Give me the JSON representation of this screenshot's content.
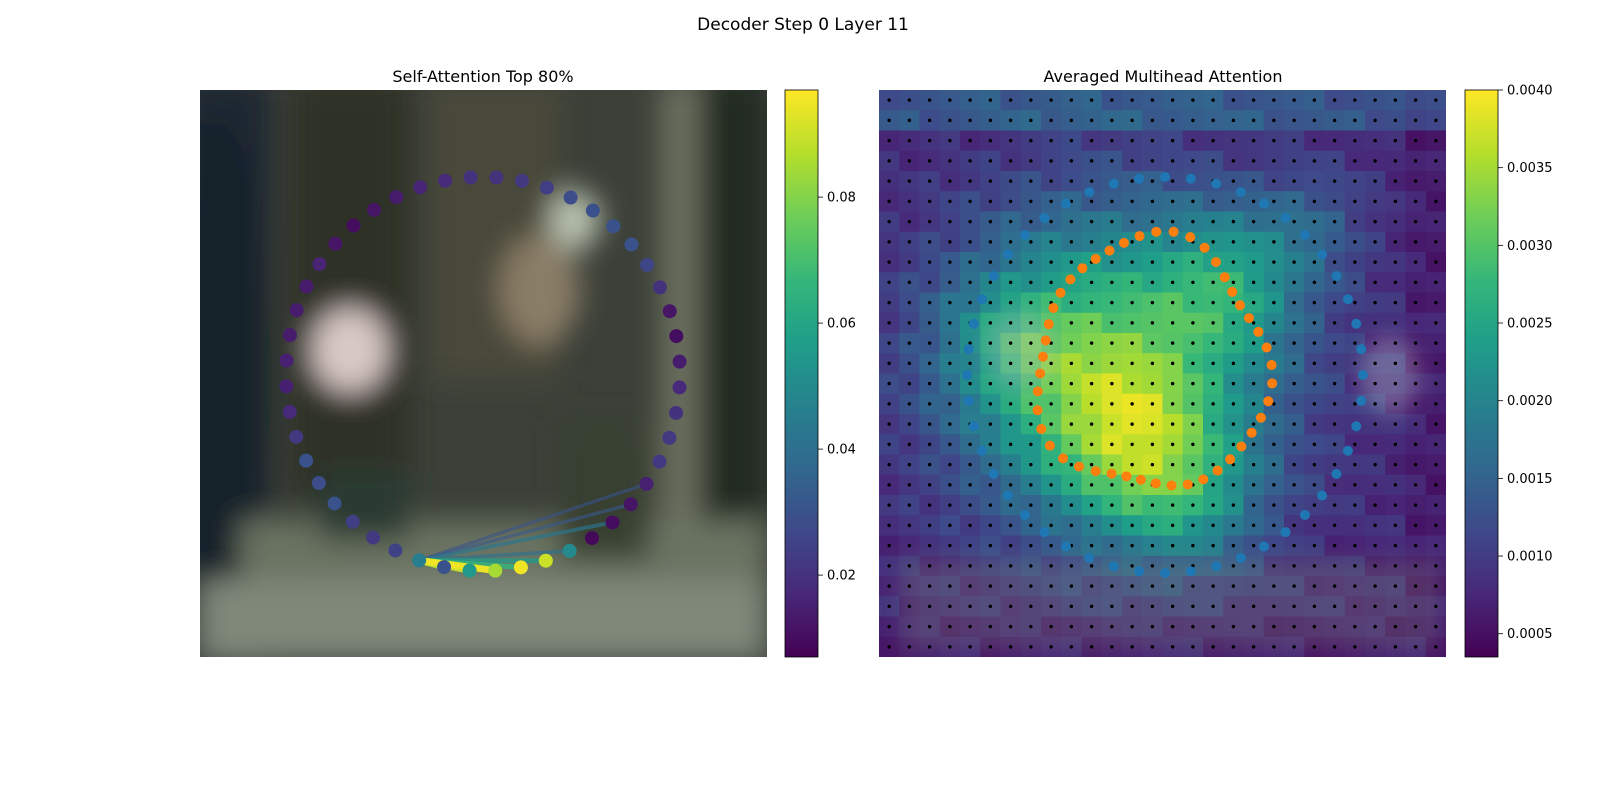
{
  "figure": {
    "suptitle": "Decoder Step 0 Layer 11"
  },
  "chart_data": [
    {
      "type": "scatter",
      "panel": "left",
      "title": "Self-Attention Top 80%",
      "background": "blurred street-scene photo",
      "points": "48 control points arranged on an ellipse, colored by attention weight",
      "n_points": 48,
      "query_index": 0,
      "weights": [
        0.045,
        0.025,
        0.022,
        0.024,
        0.03,
        0.028,
        0.03,
        0.022,
        0.018,
        0.015,
        0.015,
        0.014,
        0.014,
        0.014,
        0.016,
        0.012,
        0.01,
        0.012,
        0.014,
        0.016,
        0.018,
        0.02,
        0.02,
        0.022,
        0.024,
        0.028,
        0.03,
        0.03,
        0.03,
        0.026,
        0.02,
        0.012,
        0.01,
        0.014,
        0.018,
        0.02,
        0.022,
        0.022,
        0.015,
        0.012,
        0.01,
        0.009,
        0.05,
        0.09,
        0.095,
        0.085,
        0.055,
        0.03
      ],
      "lines": [
        {
          "to": 42,
          "weight": 0.04
        },
        {
          "to": 43,
          "weight": 0.056
        },
        {
          "to": 44,
          "weight": 0.066
        },
        {
          "to": 45,
          "weight": 0.095
        },
        {
          "to": 46,
          "weight": 0.09
        },
        {
          "to": 47,
          "weight": 0.086
        },
        {
          "to": 0,
          "weight": 0.04
        },
        {
          "to": 40,
          "weight": 0.042
        },
        {
          "to": 39,
          "weight": 0.032
        },
        {
          "to": 38,
          "weight": 0.03
        }
      ],
      "colorbar": {
        "cmap": "viridis",
        "min": 0.007,
        "max": 0.097,
        "ticks": [
          "0.02",
          "0.04",
          "0.06",
          "0.08"
        ]
      },
      "colormap_stops": [
        "#440154",
        "#482878",
        "#3e4989",
        "#31688e",
        "#26828e",
        "#1f9e89",
        "#35b779",
        "#6ece58",
        "#b5de2b",
        "#fde725"
      ]
    },
    {
      "type": "heatmap",
      "panel": "right",
      "title": "Averaged Multihead Attention",
      "grid": [
        28,
        28
      ],
      "overlay": "black reference-point dots on every grid cell, blue and orange point sets on two concentric loops",
      "colorbar": {
        "cmap": "viridis",
        "min": 0.00035,
        "max": 0.004,
        "ticks": [
          "0.0005",
          "0.0010",
          "0.0015",
          "0.0020",
          "0.0025",
          "0.0030",
          "0.0035",
          "0.0040"
        ]
      },
      "series_colors": {
        "outer": "#1f77b4",
        "inner": "#ff7f0e"
      },
      "outer_points": 48,
      "inner_points": 45
    }
  ]
}
